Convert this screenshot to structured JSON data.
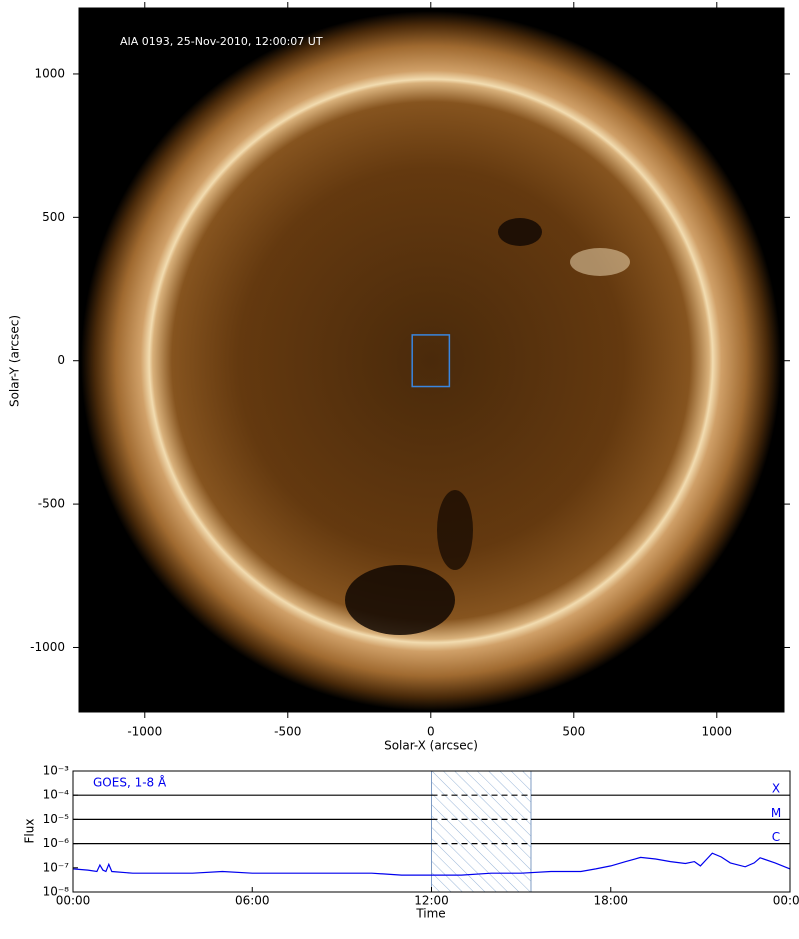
{
  "chart_data": [
    {
      "type": "image",
      "title": "AIA 0193, 25-Nov-2010, 12:00:07 UT",
      "xlabel": "Solar-X (arcsec)",
      "ylabel": "Solar-Y (arcsec)",
      "xlim": [
        -1230,
        1235
      ],
      "ylim": [
        -1225,
        1230
      ],
      "xticks": [
        -1000,
        -500,
        0,
        500,
        1000
      ],
      "yticks": [
        -1000,
        -500,
        0,
        500,
        1000
      ],
      "region": {
        "x": [
          -65,
          65
        ],
        "y": [
          -90,
          90
        ],
        "color": "#3a86e0"
      }
    },
    {
      "type": "line",
      "xlabel": "Time",
      "ylabel": "Flux",
      "log_y": true,
      "xlim": [
        0,
        24
      ],
      "xticks": [
        {
          "value": 0,
          "label": "00:00"
        },
        {
          "value": 6,
          "label": "06:00"
        },
        {
          "value": 12,
          "label": "12:00"
        },
        {
          "value": 18,
          "label": "18:00"
        },
        {
          "value": 24,
          "label": "00:00"
        }
      ],
      "ylim": [
        1e-08,
        0.001
      ],
      "yticks": [
        {
          "value": 1e-08,
          "label": "10⁻⁸"
        },
        {
          "value": 1e-07,
          "label": "10⁻⁷"
        },
        {
          "value": 1e-06,
          "label": "10⁻⁶"
        },
        {
          "value": 1e-05,
          "label": "10⁻⁵"
        },
        {
          "value": 0.0001,
          "label": "10⁻⁴"
        },
        {
          "value": 0.001,
          "label": "10⁻³"
        }
      ],
      "levels": [
        {
          "value": 0.0001,
          "label": "X"
        },
        {
          "value": 1e-05,
          "label": "M"
        },
        {
          "value": 1e-06,
          "label": "C"
        }
      ],
      "shaded": [
        12,
        15.33
      ],
      "x": [
        0,
        0.5,
        0.8,
        0.9,
        1.0,
        1.1,
        1.2,
        1.3,
        2,
        3,
        4,
        5,
        6,
        7,
        8,
        9,
        10,
        11,
        12,
        13,
        14,
        15,
        16,
        17,
        17.5,
        18,
        18.5,
        19,
        19.5,
        20,
        20.5,
        20.8,
        21,
        21.2,
        21.4,
        21.7,
        22,
        22.5,
        22.8,
        23,
        23.5,
        24
      ],
      "series": [
        {
          "name": "GOES, 1-8 Å",
          "color": "#0000ee",
          "values": [
            9e-08,
            8e-08,
            7e-08,
            1.3e-07,
            8e-08,
            7e-08,
            1.4e-07,
            7e-08,
            6e-08,
            6e-08,
            6e-08,
            7e-08,
            6e-08,
            6e-08,
            6e-08,
            6e-08,
            6e-08,
            5e-08,
            5e-08,
            5e-08,
            6e-08,
            6e-08,
            7e-08,
            7e-08,
            9e-08,
            1.2e-07,
            1.8e-07,
            2.7e-07,
            2.3e-07,
            1.8e-07,
            1.5e-07,
            1.8e-07,
            1.2e-07,
            2.2e-07,
            4e-07,
            2.8e-07,
            1.6e-07,
            1.1e-07,
            1.6e-07,
            2.6e-07,
            1.6e-07,
            9e-08
          ]
        }
      ]
    }
  ]
}
